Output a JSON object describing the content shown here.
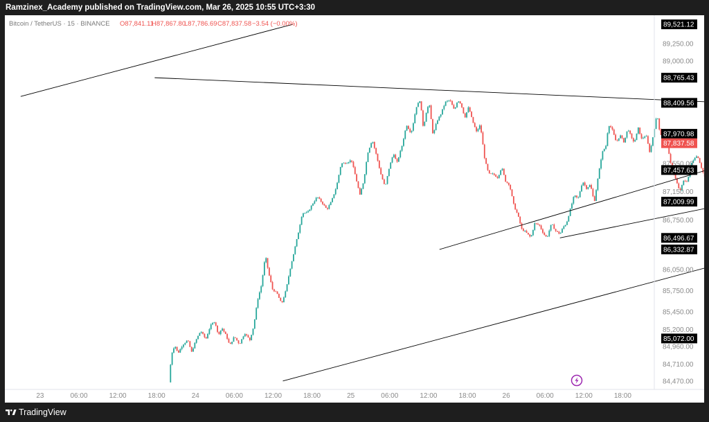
{
  "header": {
    "publisher": "Ramzinex_Academy published on TradingView.com, Mar 26, 2025 10:55 UTC+3:30"
  },
  "legend": {
    "symbol": "Bitcoin / TetherUS · 15 · BINANCE",
    "open": "O87,841.11",
    "high": "H87,867.80",
    "low": "L87,786.69",
    "close": "C87,837.58",
    "change": "−3.54 (−0.00%)"
  },
  "footer": {
    "brand": "TradingView"
  },
  "colors": {
    "up": "#26a69a",
    "down": "#ef5350",
    "line": "#000000",
    "current_price": "#ef5350"
  },
  "icons": {
    "replay": "lightning-bolt-icon",
    "logo": "tradingview-logo-icon"
  },
  "chart_data": {
    "type": "candlestick",
    "symbol": "BTCUSDT",
    "timeframe": "15",
    "ylim": [
      84350,
      89650
    ],
    "y_ticks": [
      "89,250.00",
      "89,000.00",
      "87,550.00",
      "87,150.00",
      "86,750.00",
      "86,050.00",
      "85,750.00",
      "85,450.00",
      "85,200.00",
      "84,960.00",
      "84,710.00",
      "84,470.00"
    ],
    "y_tick_values": [
      89250,
      89000,
      87550,
      87150,
      86750,
      86050,
      85750,
      85450,
      85200,
      84960,
      84710,
      84470
    ],
    "price_labels": [
      {
        "text": "89,521.12",
        "value": 89521.12,
        "kind": "line"
      },
      {
        "text": "88,765.43",
        "value": 88765.43,
        "kind": "line"
      },
      {
        "text": "88,409.56",
        "value": 88409.56,
        "kind": "line"
      },
      {
        "text": "87,970.98",
        "value": 87970.98,
        "kind": "high"
      },
      {
        "text": "87,837.58",
        "value": 87837.58,
        "kind": "current"
      },
      {
        "text": "87,457.63",
        "value": 87457.63,
        "kind": "line"
      },
      {
        "text": "87,009.99",
        "value": 87009.99,
        "kind": "line"
      },
      {
        "text": "86,496.67",
        "value": 86496.67,
        "kind": "line"
      },
      {
        "text": "86,332.87",
        "value": 86332.87,
        "kind": "line"
      },
      {
        "text": "85,072.00",
        "value": 85072.0,
        "kind": "line"
      }
    ],
    "x_ticks": [
      {
        "label": "23",
        "t": -6
      },
      {
        "label": "06:00",
        "t": 0
      },
      {
        "label": "12:00",
        "t": 6
      },
      {
        "label": "18:00",
        "t": 12
      },
      {
        "label": "24",
        "t": 18
      },
      {
        "label": "06:00",
        "t": 24
      },
      {
        "label": "12:00",
        "t": 30
      },
      {
        "label": "18:00",
        "t": 36
      },
      {
        "label": "25",
        "t": 42
      },
      {
        "label": "06:00",
        "t": 48
      },
      {
        "label": "12:00",
        "t": 54
      },
      {
        "label": "18:00",
        "t": 60
      },
      {
        "label": "26",
        "t": 66
      },
      {
        "label": "06:00",
        "t": 72
      },
      {
        "label": "12:00",
        "t": 78
      },
      {
        "label": "18:00",
        "t": 84
      }
    ],
    "path_points": [
      [
        13.9,
        84450
      ],
      [
        14.3,
        84850
      ],
      [
        14.8,
        84980
      ],
      [
        15.3,
        84860
      ],
      [
        16,
        84980
      ],
      [
        16.8,
        85050
      ],
      [
        17.4,
        84880
      ],
      [
        18.1,
        85050
      ],
      [
        18.8,
        85180
      ],
      [
        19.6,
        85060
      ],
      [
        20.3,
        85250
      ],
      [
        21,
        85320
      ],
      [
        21.5,
        85120
      ],
      [
        22.1,
        85220
      ],
      [
        22.8,
        85100
      ],
      [
        23.3,
        84970
      ],
      [
        24,
        85100
      ],
      [
        24.8,
        84990
      ],
      [
        25.6,
        85150
      ],
      [
        26.4,
        85050
      ],
      [
        27,
        85250
      ],
      [
        27.6,
        85620
      ],
      [
        28.2,
        85830
      ],
      [
        28.8,
        86250
      ],
      [
        29.3,
        86000
      ],
      [
        29.9,
        85770
      ],
      [
        30.6,
        85710
      ],
      [
        31.3,
        85560
      ],
      [
        32,
        85760
      ],
      [
        32.6,
        86050
      ],
      [
        33.1,
        86250
      ],
      [
        33.8,
        86530
      ],
      [
        34.5,
        86850
      ],
      [
        35.3,
        86850
      ],
      [
        36.1,
        86980
      ],
      [
        36.8,
        87080
      ],
      [
        37.6,
        86990
      ],
      [
        38.3,
        86900
      ],
      [
        39,
        87010
      ],
      [
        39.8,
        87230
      ],
      [
        40.5,
        87550
      ],
      [
        41.3,
        87560
      ],
      [
        42.1,
        87600
      ],
      [
        42.8,
        87340
      ],
      [
        43.4,
        87100
      ],
      [
        44,
        87310
      ],
      [
        44.6,
        87700
      ],
      [
        45.3,
        87890
      ],
      [
        46,
        87650
      ],
      [
        46.6,
        87410
      ],
      [
        47.3,
        87210
      ],
      [
        47.9,
        87480
      ],
      [
        48.6,
        87700
      ],
      [
        49.1,
        87550
      ],
      [
        49.9,
        87800
      ],
      [
        50.6,
        88100
      ],
      [
        51.3,
        87980
      ],
      [
        51.6,
        88100
      ],
      [
        52.1,
        88350
      ],
      [
        52.7,
        88450
      ],
      [
        53.2,
        88050
      ],
      [
        53.7,
        88300
      ],
      [
        54.1,
        88400
      ],
      [
        54.7,
        87950
      ],
      [
        55.3,
        88150
      ],
      [
        55.9,
        88250
      ],
      [
        56.6,
        88420
      ],
      [
        57.3,
        88450
      ],
      [
        58,
        88300
      ],
      [
        58.5,
        88450
      ],
      [
        59,
        88400
      ],
      [
        59.6,
        88200
      ],
      [
        60.2,
        88350
      ],
      [
        60.8,
        88150
      ],
      [
        61.4,
        88000
      ],
      [
        62,
        88100
      ],
      [
        62.7,
        87600
      ],
      [
        63.3,
        87400
      ],
      [
        64,
        87400
      ],
      [
        64.7,
        87350
      ],
      [
        65.3,
        87500
      ],
      [
        65.9,
        87300
      ],
      [
        66.5,
        87250
      ],
      [
        67.2,
        86950
      ],
      [
        67.8,
        86820
      ],
      [
        68.4,
        86620
      ],
      [
        69,
        86580
      ],
      [
        69.8,
        86500
      ],
      [
        70.4,
        86700
      ],
      [
        71.1,
        86680
      ],
      [
        71.8,
        86550
      ],
      [
        72.3,
        86500
      ],
      [
        73,
        86700
      ],
      [
        73.6,
        86600
      ],
      [
        74.3,
        86550
      ],
      [
        74.8,
        86650
      ],
      [
        75.3,
        86700
      ],
      [
        75.9,
        86900
      ],
      [
        76.5,
        87100
      ],
      [
        77.1,
        87050
      ],
      [
        77.8,
        87300
      ],
      [
        78.4,
        87200
      ],
      [
        79,
        87250
      ],
      [
        79.6,
        87000
      ],
      [
        80.1,
        87300
      ],
      [
        80.8,
        87700
      ],
      [
        81.4,
        87800
      ],
      [
        81.8,
        88100
      ],
      [
        82.3,
        88050
      ],
      [
        83,
        87850
      ],
      [
        83.6,
        87950
      ],
      [
        84.2,
        87850
      ],
      [
        84.8,
        88050
      ],
      [
        85.4,
        87900
      ],
      [
        85.8,
        87850
      ],
      [
        86.4,
        88050
      ],
      [
        86.9,
        87900
      ],
      [
        87.6,
        87950
      ],
      [
        88.2,
        87700
      ],
      [
        88.8,
        88000
      ],
      [
        89.3,
        88250
      ],
      [
        89.8,
        87950
      ],
      [
        90.3,
        88000
      ],
      [
        90.9,
        87800
      ],
      [
        91.5,
        87500
      ],
      [
        92.1,
        87350
      ],
      [
        92.8,
        87150
      ],
      [
        93.4,
        87300
      ],
      [
        94,
        87300
      ],
      [
        94.6,
        87550
      ],
      [
        95.2,
        87650
      ],
      [
        95.6,
        87650
      ],
      [
        96.3,
        87450
      ],
      [
        96.9,
        87300
      ],
      [
        97.6,
        87150
      ],
      [
        98.2,
        87100
      ],
      [
        98.8,
        87200
      ],
      [
        99.4,
        87250
      ],
      [
        100,
        87500
      ],
      [
        100.7,
        87550
      ],
      [
        101.2,
        87800
      ],
      [
        101.6,
        87880
      ]
    ],
    "bar_hours": 0.25,
    "trendlines": [
      {
        "t1": -9,
        "p1": 88500,
        "t2": 33,
        "p2": 89521.12
      },
      {
        "t1": 11.7,
        "p1": 88765.43,
        "t2": 100.5,
        "p2": 88409.56
      },
      {
        "t1": 55.7,
        "p1": 86332.87,
        "t2": 97,
        "p2": 87457.63
      },
      {
        "t1": 74.3,
        "p1": 86496.67,
        "t2": 102,
        "p2": 87009.99
      },
      {
        "t1": 31.5,
        "p1": 84470,
        "t2": 102,
        "p2": 86200
      }
    ]
  }
}
